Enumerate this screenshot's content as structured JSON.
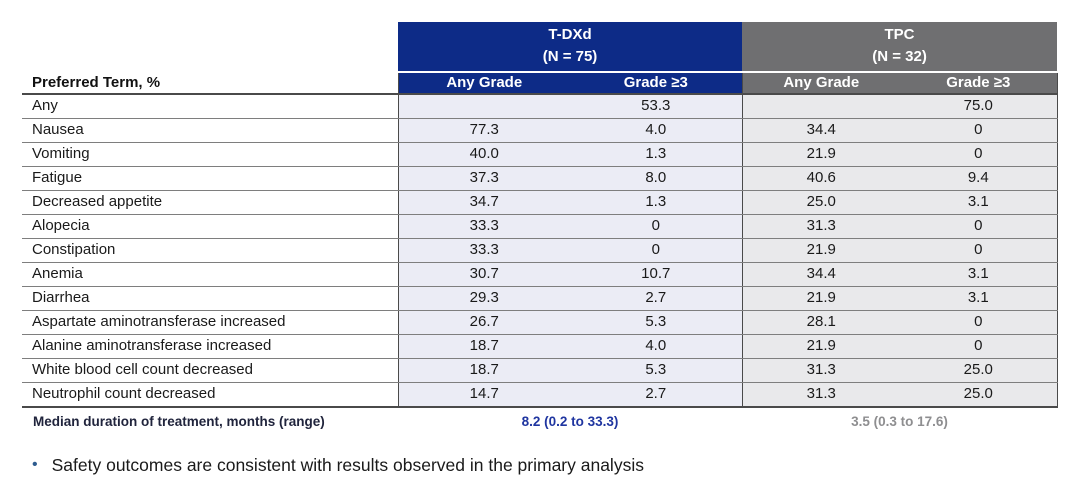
{
  "table": {
    "corner_label": "Preferred Term, %",
    "groups": [
      {
        "name": "T-DXd",
        "n": "(N = 75)"
      },
      {
        "name": "TPC",
        "n": "(N = 32)"
      }
    ],
    "subheaders": [
      "Any Grade",
      "Grade ≥3",
      "Any Grade",
      "Grade ≥3"
    ],
    "rows": [
      {
        "term": "Any",
        "cells": [
          "",
          "53.3",
          "",
          "75.0"
        ]
      },
      {
        "term": "Nausea",
        "cells": [
          "77.3",
          "4.0",
          "34.4",
          "0"
        ]
      },
      {
        "term": "Vomiting",
        "cells": [
          "40.0",
          "1.3",
          "21.9",
          "0"
        ]
      },
      {
        "term": "Fatigue",
        "cells": [
          "37.3",
          "8.0",
          "40.6",
          "9.4"
        ]
      },
      {
        "term": "Decreased appetite",
        "cells": [
          "34.7",
          "1.3",
          "25.0",
          "3.1"
        ]
      },
      {
        "term": "Alopecia",
        "cells": [
          "33.3",
          "0",
          "31.3",
          "0"
        ]
      },
      {
        "term": "Constipation",
        "cells": [
          "33.3",
          "0",
          "21.9",
          "0"
        ]
      },
      {
        "term": "Anemia",
        "cells": [
          "30.7",
          "10.7",
          "34.4",
          "3.1"
        ]
      },
      {
        "term": "Diarrhea",
        "cells": [
          "29.3",
          "2.7",
          "21.9",
          "3.1"
        ]
      },
      {
        "term": "Aspartate aminotransferase increased",
        "cells": [
          "26.7",
          "5.3",
          "28.1",
          "0"
        ]
      },
      {
        "term": "Alanine aminotransferase increased",
        "cells": [
          "18.7",
          "4.0",
          "21.9",
          "0"
        ]
      },
      {
        "term": "White blood cell count decreased",
        "cells": [
          "18.7",
          "5.3",
          "31.3",
          "25.0"
        ]
      },
      {
        "term": "Neutrophil count decreased",
        "cells": [
          "14.7",
          "2.7",
          "31.3",
          "25.0"
        ]
      }
    ]
  },
  "footer": {
    "label": "Median duration of treatment, months (range)",
    "tdxd_value": "8.2 (0.2 to 33.3)",
    "tpc_value": "3.5 (0.3 to 17.6)"
  },
  "bullet": {
    "marker": "•",
    "text": "Safety outcomes are consistent with results observed in the primary analysis"
  },
  "colors": {
    "tdxd_header": "#0d2b87",
    "tpc_header": "#6f6f71",
    "tdxd_cell_bg": "#ebecf5",
    "tpc_cell_bg": "#e9e9eb",
    "tdxd_footer_text": "#1f35a0",
    "tpc_footer_text": "#8e8e90"
  }
}
